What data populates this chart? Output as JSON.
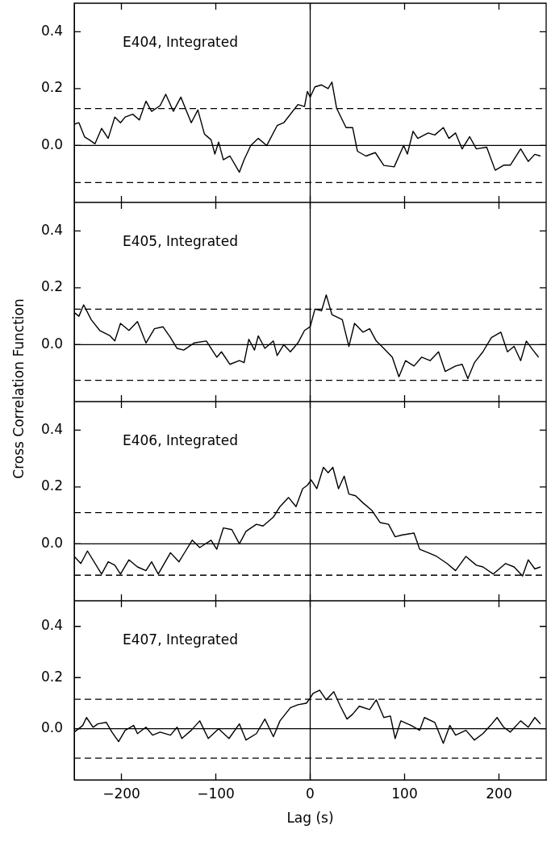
{
  "chart_data": [
    {
      "type": "line",
      "annotations": [
        "E404, Integrated"
      ],
      "tick_labels": "y",
      "xlim": [
        -250,
        250
      ],
      "xticks": [
        {
          "value": -200,
          "label": null
        },
        {
          "value": -100,
          "label": null
        },
        {
          "value": 0,
          "label": null
        },
        {
          "value": 100,
          "label": null
        },
        {
          "value": 200,
          "label": null
        }
      ],
      "ylim": [
        -0.2,
        0.5
      ],
      "yticks": [
        {
          "value": 0,
          "label": "0.0"
        },
        {
          "value": 0.2,
          "label": "0.2"
        },
        {
          "value": 0.4,
          "label": "0.4"
        }
      ],
      "grid": false,
      "legend": false,
      "marker": "none",
      "line_style": "solid",
      "ref_lines": [
        {
          "axis": "y",
          "value": 0,
          "color": "#000000",
          "line_style": "solid"
        },
        {
          "axis": "y",
          "value": 0.13,
          "color": "#000000",
          "line_style": "dashed"
        },
        {
          "axis": "y",
          "value": -0.13,
          "color": "#000000",
          "line_style": "dashed"
        },
        {
          "axis": "x",
          "value": 0,
          "color": "#000000",
          "line_style": "solid"
        }
      ],
      "series": [
        {
          "color": "#000000",
          "x": [
            -250,
            -245,
            -239,
            -234,
            -228,
            -221,
            -214,
            -207,
            -201,
            -196,
            -188,
            -181,
            -174,
            -168,
            -159,
            -153,
            -145,
            -137,
            -126,
            -119,
            -112,
            -105,
            -101,
            -97,
            -92,
            -85,
            -75,
            -70,
            -63,
            -55,
            -46,
            -35,
            -28,
            -13,
            -6,
            -3,
            0,
            5,
            12,
            19,
            23,
            28,
            38,
            45,
            50,
            59,
            69,
            78,
            89,
            99,
            103,
            109,
            114,
            125,
            132,
            141,
            147,
            154,
            161,
            169,
            176,
            187,
            196,
            205,
            212,
            223,
            231,
            238,
            244
          ],
          "values": [
            0.075,
            0.08,
            0.03,
            0.02,
            0.006,
            0.06,
            0.025,
            0.1,
            0.08,
            0.1,
            0.11,
            0.09,
            0.156,
            0.12,
            0.14,
            0.18,
            0.12,
            0.17,
            0.08,
            0.125,
            0.04,
            0.02,
            -0.03,
            0.012,
            -0.05,
            -0.037,
            -0.094,
            -0.05,
            0,
            0.025,
            0,
            0.07,
            0.08,
            0.144,
            0.137,
            0.19,
            0.17,
            0.206,
            0.213,
            0.2,
            0.223,
            0.131,
            0.063,
            0.063,
            -0.02,
            -0.037,
            -0.025,
            -0.07,
            -0.075,
            0,
            -0.03,
            0.05,
            0.025,
            0.044,
            0.037,
            0.063,
            0.025,
            0.044,
            -0.012,
            0.031,
            -0.012,
            -0.006,
            -0.087,
            -0.069,
            -0.069,
            -0.012,
            -0.056,
            -0.031,
            -0.037
          ]
        }
      ]
    },
    {
      "type": "line",
      "annotations": [
        "E405, Integrated"
      ],
      "ylabel": "Cross Correlation Function",
      "tick_labels": "y",
      "xlim": [
        -250,
        250
      ],
      "xticks": [
        {
          "value": -200,
          "label": null
        },
        {
          "value": -100,
          "label": null
        },
        {
          "value": 0,
          "label": null
        },
        {
          "value": 100,
          "label": null
        },
        {
          "value": 200,
          "label": null
        }
      ],
      "ylim": [
        -0.2,
        0.5
      ],
      "yticks": [
        {
          "value": 0,
          "label": "0.0"
        },
        {
          "value": 0.2,
          "label": "0.2"
        },
        {
          "value": 0.4,
          "label": "0.4"
        }
      ],
      "grid": false,
      "legend": false,
      "marker": "none",
      "line_style": "solid",
      "ref_lines": [
        {
          "axis": "y",
          "value": 0,
          "color": "#000000",
          "line_style": "solid"
        },
        {
          "axis": "y",
          "value": 0.125,
          "color": "#000000",
          "line_style": "dashed"
        },
        {
          "axis": "y",
          "value": -0.125,
          "color": "#000000",
          "line_style": "dashed"
        },
        {
          "axis": "x",
          "value": 0,
          "color": "#000000",
          "line_style": "solid"
        }
      ],
      "series": [
        {
          "color": "#000000",
          "x": [
            -250,
            -245,
            -240,
            -232,
            -223,
            -212,
            -207,
            -201,
            -192,
            -183,
            -174,
            -165,
            -156,
            -148,
            -141,
            -134,
            -123,
            -110,
            -99,
            -94,
            -85,
            -75,
            -70,
            -65,
            -59,
            -55,
            -48,
            -39,
            -35,
            -28,
            -21,
            -13,
            -6,
            0,
            5,
            12,
            17,
            23,
            34,
            41,
            47,
            56,
            63,
            70,
            78,
            87,
            94,
            101,
            110,
            118,
            127,
            136,
            143,
            154,
            161,
            167,
            174,
            183,
            192,
            202,
            209,
            216,
            223,
            229,
            236,
            242
          ],
          "values": [
            0.113,
            0.1,
            0.14,
            0.088,
            0.05,
            0.031,
            0.013,
            0.075,
            0.05,
            0.081,
            0.006,
            0.056,
            0.063,
            0.025,
            -0.013,
            -0.019,
            0.006,
            0.013,
            -0.044,
            -0.025,
            -0.069,
            -0.056,
            -0.063,
            0.019,
            -0.019,
            0.031,
            -0.013,
            0.013,
            -0.038,
            0,
            -0.025,
            0.006,
            0.05,
            0.063,
            0.125,
            0.119,
            0.175,
            0.106,
            0.088,
            -0.006,
            0.075,
            0.044,
            0.056,
            0.013,
            -0.013,
            -0.044,
            -0.113,
            -0.056,
            -0.075,
            -0.044,
            -0.056,
            -0.025,
            -0.094,
            -0.075,
            -0.069,
            -0.119,
            -0.063,
            -0.025,
            0.025,
            0.044,
            -0.025,
            -0.006,
            -0.056,
            0.013,
            -0.019,
            -0.044
          ]
        }
      ]
    },
    {
      "type": "line",
      "annotations": [
        "E406, Integrated"
      ],
      "tick_labels": "y",
      "xlim": [
        -250,
        250
      ],
      "xticks": [
        {
          "value": -200,
          "label": null
        },
        {
          "value": -100,
          "label": null
        },
        {
          "value": 0,
          "label": null
        },
        {
          "value": 100,
          "label": null
        },
        {
          "value": 200,
          "label": null
        }
      ],
      "ylim": [
        -0.2,
        0.5
      ],
      "yticks": [
        {
          "value": 0,
          "label": "0.0"
        },
        {
          "value": 0.2,
          "label": "0.2"
        },
        {
          "value": 0.4,
          "label": "0.4"
        }
      ],
      "grid": false,
      "legend": false,
      "marker": "none",
      "line_style": "solid",
      "ref_lines": [
        {
          "axis": "y",
          "value": 0,
          "color": "#000000",
          "line_style": "solid"
        },
        {
          "axis": "y",
          "value": 0.11,
          "color": "#000000",
          "line_style": "dashed"
        },
        {
          "axis": "y",
          "value": -0.11,
          "color": "#000000",
          "line_style": "dashed"
        },
        {
          "axis": "x",
          "value": 0,
          "color": "#000000",
          "line_style": "solid"
        }
      ],
      "series": [
        {
          "color": "#000000",
          "x": [
            -250,
            -243,
            -236,
            -221,
            -214,
            -207,
            -201,
            -192,
            -183,
            -174,
            -168,
            -161,
            -148,
            -139,
            -132,
            -125,
            -117,
            -105,
            -99,
            -92,
            -83,
            -75,
            -68,
            -57,
            -50,
            -39,
            -32,
            -23,
            -15,
            -8,
            -3,
            1,
            7,
            14,
            19,
            24,
            30,
            36,
            41,
            48,
            56,
            65,
            74,
            83,
            90,
            97,
            110,
            116,
            125,
            134,
            145,
            154,
            165,
            176,
            183,
            194,
            207,
            216,
            225,
            231,
            238,
            244
          ],
          "values": [
            -0.044,
            -0.069,
            -0.025,
            -0.106,
            -0.063,
            -0.075,
            -0.106,
            -0.056,
            -0.081,
            -0.094,
            -0.063,
            -0.106,
            -0.031,
            -0.063,
            -0.025,
            0.013,
            -0.013,
            0.013,
            -0.019,
            0.056,
            0.05,
            0,
            0.044,
            0.069,
            0.063,
            0.094,
            0.131,
            0.163,
            0.131,
            0.194,
            0.206,
            0.225,
            0.194,
            0.269,
            0.25,
            0.269,
            0.194,
            0.238,
            0.175,
            0.169,
            0.144,
            0.119,
            0.075,
            0.069,
            0.025,
            0.031,
            0.038,
            -0.019,
            -0.031,
            -0.044,
            -0.069,
            -0.094,
            -0.044,
            -0.075,
            -0.081,
            -0.106,
            -0.069,
            -0.081,
            -0.113,
            -0.056,
            -0.088,
            -0.081
          ]
        }
      ]
    },
    {
      "type": "line",
      "annotations": [
        "E407, Integrated"
      ],
      "xlabel": "Lag (s)",
      "xlim": [
        -250,
        250
      ],
      "xticks": [
        {
          "value": -200,
          "label": "−200"
        },
        {
          "value": -100,
          "label": "−100"
        },
        0,
        100,
        200
      ],
      "ylim": [
        -0.2,
        0.5
      ],
      "yticks": [
        {
          "value": 0,
          "label": "0.0"
        },
        {
          "value": 0.2,
          "label": "0.2"
        },
        {
          "value": 0.4,
          "label": "0.4"
        }
      ],
      "grid": false,
      "legend": false,
      "marker": "none",
      "line_style": "solid",
      "ref_lines": [
        {
          "axis": "y",
          "value": 0,
          "color": "#000000",
          "line_style": "solid"
        },
        {
          "axis": "y",
          "value": 0.115,
          "color": "#000000",
          "line_style": "dashed"
        },
        {
          "axis": "y",
          "value": -0.115,
          "color": "#000000",
          "line_style": "dashed"
        },
        {
          "axis": "x",
          "value": 0,
          "color": "#000000",
          "line_style": "solid"
        }
      ],
      "series": [
        {
          "color": "#000000",
          "x": [
            -250,
            -241,
            -237,
            -230,
            -225,
            -216,
            -210,
            -203,
            -196,
            -187,
            -183,
            -174,
            -167,
            -159,
            -148,
            -141,
            -136,
            -126,
            -117,
            -108,
            -97,
            -86,
            -75,
            -68,
            -57,
            -48,
            -39,
            -32,
            -21,
            -13,
            -4,
            0,
            3,
            10,
            17,
            25,
            32,
            39,
            45,
            52,
            63,
            70,
            78,
            85,
            90,
            96,
            107,
            116,
            121,
            132,
            141,
            148,
            154,
            165,
            174,
            183,
            191,
            198,
            205,
            212,
            223,
            231,
            238,
            244
          ],
          "values": [
            -0.013,
            0.013,
            0.044,
            0.006,
            0.019,
            0.025,
            -0.013,
            -0.05,
            -0.006,
            0.013,
            -0.019,
            0.006,
            -0.025,
            -0.013,
            -0.025,
            0.006,
            -0.038,
            -0.006,
            0.031,
            -0.038,
            0,
            -0.038,
            0.019,
            -0.044,
            -0.019,
            0.038,
            -0.031,
            0.031,
            0.082,
            0.094,
            0.1,
            0.12,
            0.138,
            0.151,
            0.113,
            0.145,
            0.088,
            0.038,
            0.057,
            0.088,
            0.075,
            0.113,
            0.044,
            0.05,
            -0.038,
            0.031,
            0.013,
            -0.006,
            0.044,
            0.025,
            -0.057,
            0.013,
            -0.025,
            -0.006,
            -0.044,
            -0.019,
            0.013,
            0.044,
            0.006,
            -0.013,
            0.031,
            0.006,
            0.044,
            0.019
          ]
        }
      ]
    }
  ]
}
